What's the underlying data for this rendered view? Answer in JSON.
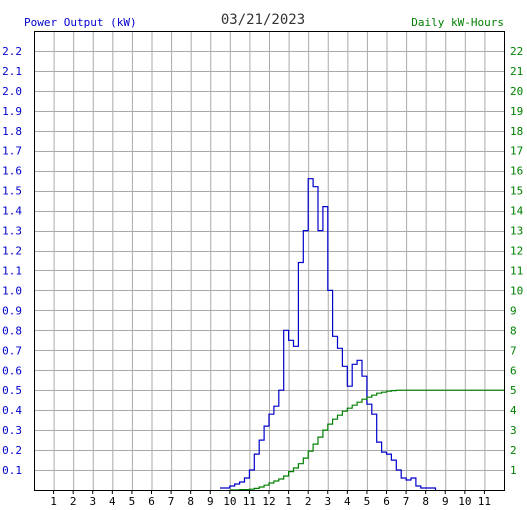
{
  "header": {
    "left_label": "Power Output (kW)",
    "date": "03/21/2023",
    "right_label": "Daily kW-Hours"
  },
  "colors": {
    "power": "#0000cc",
    "energy": "#008000",
    "grid": "#aaaaaa",
    "frame": "#000000",
    "header_text": "#333333"
  },
  "chart_data": {
    "type": "line",
    "title": "03/21/2023",
    "x_tick_labels": [
      "1",
      "2",
      "3",
      "4",
      "5",
      "6",
      "7",
      "8",
      "9",
      "10",
      "11",
      "12",
      "1",
      "2",
      "3",
      "4",
      "5",
      "6",
      "7",
      "8",
      "9",
      "10",
      "11"
    ],
    "x_unit": "hour",
    "xlim": [
      0,
      24
    ],
    "grid": true,
    "y_left": {
      "label": "Power Output (kW)",
      "ylim": [
        0,
        2.3
      ],
      "ticks": [
        "0.1",
        "0.2",
        "0.3",
        "0.4",
        "0.5",
        "0.6",
        "0.7",
        "0.8",
        "0.9",
        "1.0",
        "1.1",
        "1.2",
        "1.3",
        "1.4",
        "1.5",
        "1.6",
        "1.7",
        "1.8",
        "1.9",
        "2.0",
        "2.1",
        "2.2"
      ]
    },
    "y_right": {
      "label": "Daily kW-Hours",
      "ylim": [
        0,
        23
      ],
      "ticks": [
        "1",
        "2",
        "3",
        "4",
        "5",
        "6",
        "7",
        "8",
        "9",
        "10",
        "11",
        "12",
        "13",
        "14",
        "15",
        "16",
        "17",
        "18",
        "19",
        "20",
        "21",
        "22"
      ]
    },
    "series": [
      {
        "name": "Power Output (kW)",
        "axis": "left",
        "step": true,
        "x": [
          9.5,
          9.75,
          10.0,
          10.25,
          10.5,
          10.75,
          11.0,
          11.25,
          11.5,
          11.75,
          12.0,
          12.25,
          12.5,
          12.75,
          13.0,
          13.25,
          13.5,
          13.75,
          14.0,
          14.25,
          14.5,
          14.75,
          15.0,
          15.25,
          15.5,
          15.75,
          16.0,
          16.25,
          16.5,
          16.75,
          17.0,
          17.25,
          17.5,
          17.75,
          18.0,
          18.25,
          18.5,
          18.75,
          19.0,
          19.25,
          19.5,
          19.75,
          20.0,
          20.25,
          20.5
        ],
        "y": [
          0.01,
          0.01,
          0.02,
          0.03,
          0.04,
          0.06,
          0.1,
          0.18,
          0.25,
          0.32,
          0.38,
          0.42,
          0.5,
          0.8,
          0.75,
          0.72,
          1.14,
          1.3,
          1.56,
          1.52,
          1.3,
          1.42,
          1.0,
          0.77,
          0.71,
          0.62,
          0.52,
          0.63,
          0.65,
          0.57,
          0.43,
          0.38,
          0.24,
          0.19,
          0.18,
          0.15,
          0.1,
          0.06,
          0.05,
          0.06,
          0.02,
          0.01,
          0.01,
          0.01,
          0.0
        ]
      },
      {
        "name": "Daily kW-Hours",
        "axis": "right",
        "step": true,
        "x": [
          10.0,
          10.5,
          11.0,
          11.25,
          11.5,
          11.75,
          12.0,
          12.25,
          12.5,
          12.75,
          13.0,
          13.25,
          13.5,
          13.75,
          14.0,
          14.25,
          14.5,
          14.75,
          15.0,
          15.25,
          15.5,
          15.75,
          16.0,
          16.25,
          16.5,
          16.75,
          17.0,
          17.25,
          17.5,
          17.75,
          18.0,
          18.25,
          18.5,
          18.75,
          19.0,
          20.0,
          24.0
        ],
        "y": [
          0.0,
          0.02,
          0.04,
          0.08,
          0.15,
          0.24,
          0.35,
          0.45,
          0.55,
          0.7,
          0.92,
          1.1,
          1.32,
          1.6,
          1.95,
          2.3,
          2.65,
          3.0,
          3.3,
          3.55,
          3.75,
          3.95,
          4.1,
          4.25,
          4.4,
          4.55,
          4.65,
          4.75,
          4.85,
          4.9,
          4.95,
          4.98,
          5.0,
          5.0,
          5.0,
          5.0,
          5.0
        ]
      }
    ]
  }
}
